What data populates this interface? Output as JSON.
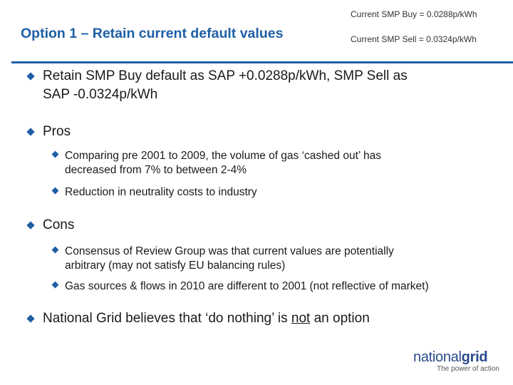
{
  "header": {
    "title": "Option 1 – Retain current default values",
    "smp_buy": "Current SMP Buy = 0.0288p/kWh",
    "smp_sell": "Current SMP Sell = 0.0324p/kWh"
  },
  "colors": {
    "accent": "#1f5fa6",
    "text": "#1a1a1a"
  },
  "icons": {
    "bullet": "diamond-icon"
  },
  "bullets": {
    "b1_line1": "Retain SMP Buy default as SAP +0.0288p/kWh, SMP Sell as",
    "b1_line2": "SAP -0.0324p/kWh",
    "pros": "Pros",
    "pros_1_line1": "Comparing pre 2001 to 2009, the volume of gas ‘cashed out’ has",
    "pros_1_line2": "decreased from 7% to between 2-4%",
    "pros_2": "Reduction in neutrality costs to industry",
    "cons": "Cons",
    "cons_1_line1": "Consensus of Review Group was that current values are potentially",
    "cons_1_line2": "arbitrary (may not satisfy EU balancing rules)",
    "cons_2": "Gas sources & flows in 2010 are different to 2001 (not reflective of market)",
    "ng_before": "National Grid believes that ‘do nothing’ is ",
    "ng_underlined": "not",
    "ng_after": " an option"
  },
  "logo": {
    "name_part1": "national",
    "name_part2": "grid",
    "tagline": "The power of action"
  }
}
